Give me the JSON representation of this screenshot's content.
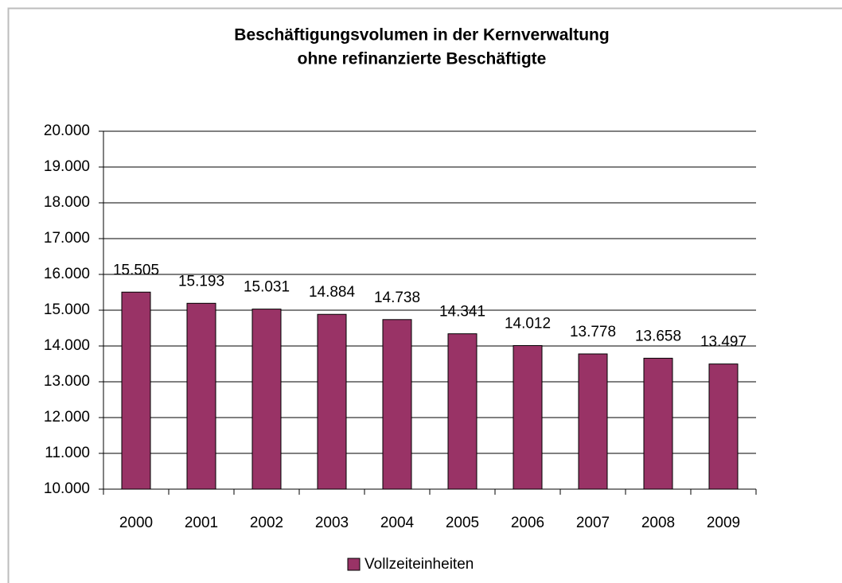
{
  "chart_data": {
    "type": "bar",
    "title": [
      "Beschäftigungsvolumen in der Kernverwaltung",
      "ohne refinanzierte Beschäftigte"
    ],
    "categories": [
      "2000",
      "2001",
      "2002",
      "2003",
      "2004",
      "2005",
      "2006",
      "2007",
      "2008",
      "2009"
    ],
    "series": [
      {
        "name": "Vollzeiteinheiten",
        "color": "#993366",
        "values": [
          15505,
          15193,
          15031,
          14884,
          14738,
          14341,
          14012,
          13778,
          13658,
          13497
        ],
        "value_labels": [
          "15.505",
          "15.193",
          "15.031",
          "14.884",
          "14.738",
          "14.341",
          "14.012",
          "13.778",
          "13.658",
          "13.497"
        ]
      }
    ],
    "ylim": [
      10000,
      20000
    ],
    "yticks": [
      {
        "value": 10000,
        "label": "10.000"
      },
      {
        "value": 11000,
        "label": "11.000"
      },
      {
        "value": 12000,
        "label": "12.000"
      },
      {
        "value": 13000,
        "label": "13.000"
      },
      {
        "value": 14000,
        "label": "14.000"
      },
      {
        "value": 15000,
        "label": "15.000"
      },
      {
        "value": 16000,
        "label": "16.000"
      },
      {
        "value": 17000,
        "label": "17.000"
      },
      {
        "value": 18000,
        "label": "18.000"
      },
      {
        "value": 19000,
        "label": "19.000"
      },
      {
        "value": 20000,
        "label": "20.000"
      }
    ],
    "grid": true,
    "legend": "bottom"
  }
}
